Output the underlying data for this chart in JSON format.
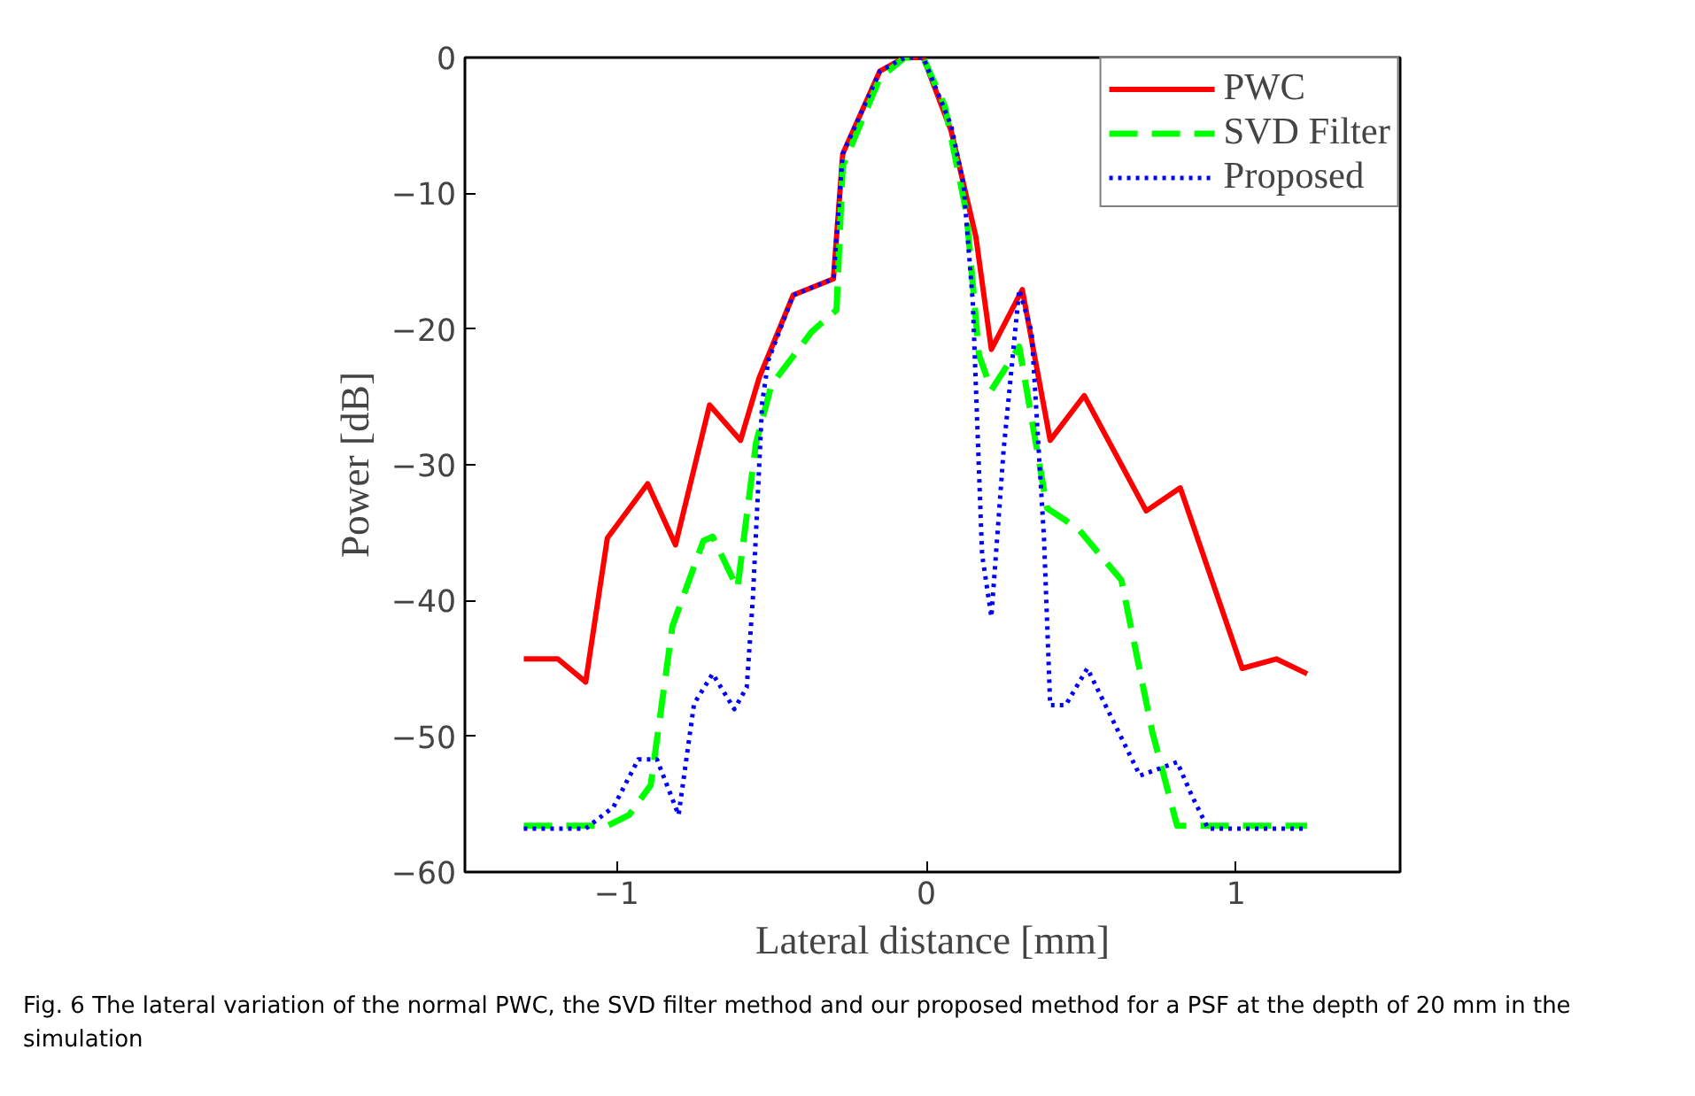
{
  "chart_data": {
    "type": "line",
    "xlabel": "Lateral distance [mm]",
    "ylabel": "Power [dB]",
    "xlim": [
      -1.49,
      1.53
    ],
    "ylim": [
      -60,
      0
    ],
    "xticks": [
      -1,
      0,
      1
    ],
    "yticks": [
      -60,
      -50,
      -40,
      -30,
      -20,
      -10,
      0
    ],
    "grid": false,
    "legend": "top right",
    "series": [
      {
        "name": "PWC",
        "color": "#ff0000",
        "line_style": "solid",
        "x": [
          -1.3,
          -1.19,
          -1.1,
          -1.03,
          -0.9,
          -0.81,
          -0.7,
          -0.6,
          -0.54,
          -0.43,
          -0.3,
          -0.27,
          -0.15,
          -0.07,
          -0.01,
          0.08,
          0.16,
          0.21,
          0.31,
          0.4,
          0.51,
          0.71,
          0.82,
          1.02,
          1.13,
          1.23
        ],
        "values": [
          -44.3,
          -44.3,
          -46.0,
          -35.4,
          -31.4,
          -35.9,
          -25.6,
          -28.2,
          -23.6,
          -17.5,
          -16.3,
          -7.1,
          -1.0,
          0,
          0,
          -5.4,
          -13.2,
          -21.5,
          -17.1,
          -28.2,
          -24.9,
          -33.4,
          -31.7,
          -45.0,
          -44.3,
          -45.4
        ]
      },
      {
        "name": "SVD Filter",
        "color": "#00ff00",
        "line_style": "dashed",
        "x": [
          -1.3,
          -1.03,
          -0.96,
          -0.89,
          -0.82,
          -0.72,
          -0.69,
          -0.61,
          -0.55,
          -0.5,
          -0.37,
          -0.29,
          -0.27,
          -0.15,
          -0.07,
          -0.01,
          0.06,
          0.13,
          0.17,
          0.21,
          0.3,
          0.39,
          0.49,
          0.63,
          0.73,
          0.81,
          1.23
        ],
        "values": [
          -56.6,
          -56.6,
          -55.8,
          -53.6,
          -41.9,
          -35.6,
          -35.3,
          -39.1,
          -28.4,
          -24.1,
          -20.2,
          -18.6,
          -8.0,
          -1.5,
          0,
          0,
          -3.6,
          -11.5,
          -21.9,
          -24.5,
          -21.3,
          -33.2,
          -34.7,
          -38.5,
          -49.7,
          -56.6,
          -56.6
        ]
      },
      {
        "name": "Proposed",
        "color": "#0000ff",
        "line_style": "dotted",
        "x": [
          -1.3,
          -1.1,
          -1.01,
          -0.93,
          -0.87,
          -0.8,
          -0.75,
          -0.69,
          -0.62,
          -0.58,
          -0.56,
          -0.53,
          -0.51,
          -0.43,
          -0.3,
          -0.27,
          -0.15,
          -0.07,
          -0.01,
          0.08,
          0.12,
          0.15,
          0.18,
          0.21,
          0.25,
          0.3,
          0.34,
          0.38,
          0.4,
          0.45,
          0.52,
          0.69,
          0.81,
          0.86,
          0.91,
          1.23
        ],
        "values": [
          -56.8,
          -56.8,
          -55.2,
          -51.7,
          -51.7,
          -55.8,
          -47.6,
          -45.4,
          -48.0,
          -46.4,
          -39.8,
          -25.4,
          -22.3,
          -17.5,
          -16.3,
          -7.1,
          -1.0,
          0,
          0,
          -5.0,
          -9.3,
          -18.0,
          -36.6,
          -41.2,
          -28.8,
          -17.1,
          -20.2,
          -35.4,
          -47.7,
          -47.7,
          -45.0,
          -52.9,
          -51.9,
          -54.5,
          -56.8,
          -56.8
        ]
      }
    ],
    "annotations": [
      "Fig. 6  The lateral variation of the normal PWC, the SVD filter method and our proposed method for a PSF at the depth of 20 mm in the simulation"
    ]
  }
}
